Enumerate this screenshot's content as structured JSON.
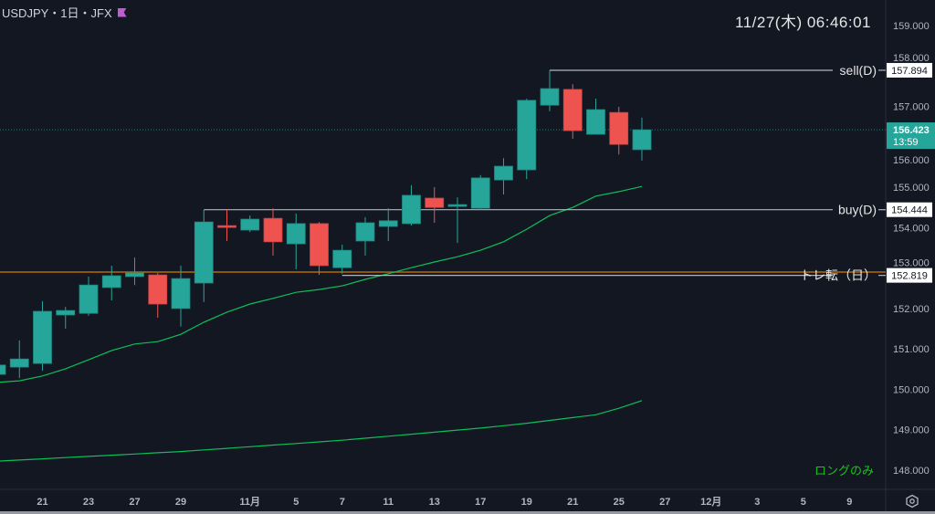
{
  "header": {
    "symbol_label": "USDJPY・1日・JFX",
    "flag_color": "#c15bd1",
    "clock": "11/27(木)   06:46:01"
  },
  "colors": {
    "background": "#131722",
    "up": "#26a69a",
    "down": "#ef5350",
    "ma_short": "#0dbf5a",
    "ma_long": "#0dbf5a",
    "trend_line": "#b36b00",
    "level_line": "#b2b5be",
    "note": "#19c419"
  },
  "chart_data": {
    "type": "candlestick",
    "ylim": [
      147.5,
      159.6
    ],
    "y_ticks": [
      "159.000",
      "158.000",
      "157.000",
      "156.000",
      "155.000",
      "154.000",
      "153.000",
      "152.000",
      "151.000",
      "150.000",
      "149.000",
      "148.000"
    ],
    "x_ticks": [
      {
        "label": "21",
        "bar": 2
      },
      {
        "label": "23",
        "bar": 4
      },
      {
        "label": "27",
        "bar": 6
      },
      {
        "label": "29",
        "bar": 8
      },
      {
        "label": "11月",
        "bar": 11
      },
      {
        "label": "5",
        "bar": 13
      },
      {
        "label": "7",
        "bar": 15
      },
      {
        "label": "11",
        "bar": 17
      },
      {
        "label": "13",
        "bar": 19
      },
      {
        "label": "17",
        "bar": 21
      },
      {
        "label": "19",
        "bar": 23
      },
      {
        "label": "21",
        "bar": 25
      },
      {
        "label": "25",
        "bar": 27
      },
      {
        "label": "27",
        "bar": 29
      },
      {
        "label": "12月",
        "bar": 31
      },
      {
        "label": "3",
        "bar": 33
      },
      {
        "label": "5",
        "bar": 35
      },
      {
        "label": "9",
        "bar": 37
      }
    ],
    "ohlc": [
      [
        150.37,
        150.64,
        150.33,
        150.6
      ],
      [
        150.55,
        151.21,
        150.28,
        150.75
      ],
      [
        150.64,
        152.18,
        150.46,
        151.93
      ],
      [
        151.84,
        152.04,
        151.5,
        151.95
      ],
      [
        151.88,
        152.79,
        151.82,
        152.58
      ],
      [
        152.52,
        153.06,
        152.2,
        152.81
      ],
      [
        152.79,
        153.26,
        152.58,
        152.88
      ],
      [
        152.83,
        152.88,
        151.77,
        152.11
      ],
      [
        152.0,
        153.06,
        151.55,
        152.74
      ],
      [
        152.63,
        154.44,
        152.16,
        154.14
      ],
      [
        154.05,
        154.44,
        153.67,
        154.04
      ],
      [
        153.94,
        154.3,
        153.89,
        154.21
      ],
      [
        154.23,
        154.48,
        153.31,
        153.65
      ],
      [
        153.6,
        154.35,
        152.97,
        154.1
      ],
      [
        154.1,
        154.14,
        152.83,
        153.06
      ],
      [
        153.01,
        153.58,
        152.86,
        153.44
      ],
      [
        153.67,
        154.26,
        153.31,
        154.12
      ],
      [
        154.03,
        154.48,
        153.67,
        154.17
      ],
      [
        154.1,
        155.05,
        154.05,
        154.8
      ],
      [
        154.73,
        155.0,
        154.12,
        154.5
      ],
      [
        154.53,
        154.75,
        153.62,
        154.57
      ],
      [
        154.48,
        155.3,
        154.44,
        155.23
      ],
      [
        155.18,
        155.72,
        154.82,
        155.52
      ],
      [
        155.43,
        157.19,
        155.2,
        157.15
      ],
      [
        157.03,
        157.89,
        156.88,
        157.44
      ],
      [
        157.42,
        157.55,
        156.2,
        156.4
      ],
      [
        156.31,
        157.19,
        156.31,
        156.92
      ],
      [
        156.85,
        156.99,
        155.81,
        156.06
      ],
      [
        155.93,
        156.72,
        155.66,
        156.42
      ]
    ],
    "ma_short": [
      150.17,
      150.21,
      150.33,
      150.51,
      150.73,
      150.96,
      151.12,
      151.18,
      151.36,
      151.66,
      151.91,
      152.11,
      152.25,
      152.4,
      152.47,
      152.56,
      152.72,
      152.86,
      153.01,
      153.15,
      153.28,
      153.44,
      153.65,
      153.96,
      154.3,
      154.5,
      154.78,
      154.89,
      155.02
    ],
    "ma_long": [
      148.22,
      148.25,
      148.28,
      148.31,
      148.34,
      148.37,
      148.4,
      148.43,
      148.46,
      148.5,
      148.54,
      148.58,
      148.62,
      148.66,
      148.7,
      148.74,
      148.79,
      148.84,
      148.89,
      148.94,
      148.99,
      149.04,
      149.1,
      149.16,
      149.23,
      149.3,
      149.37,
      149.53,
      149.72
    ],
    "current_price": {
      "value": 156.423,
      "label": "156.423",
      "countdown": "13:59"
    },
    "levels": [
      {
        "name": "sell(D)",
        "value": 157.894,
        "label": "157.894",
        "from_bar": 24
      },
      {
        "name": "buy(D)",
        "value": 154.444,
        "label": "154.444",
        "from_bar": 9
      },
      {
        "name": "トレ転（日）",
        "value": 152.819,
        "label": "152.819",
        "from_bar": 15
      }
    ],
    "trend_line_value": 152.9,
    "note": "ロングのみ"
  }
}
